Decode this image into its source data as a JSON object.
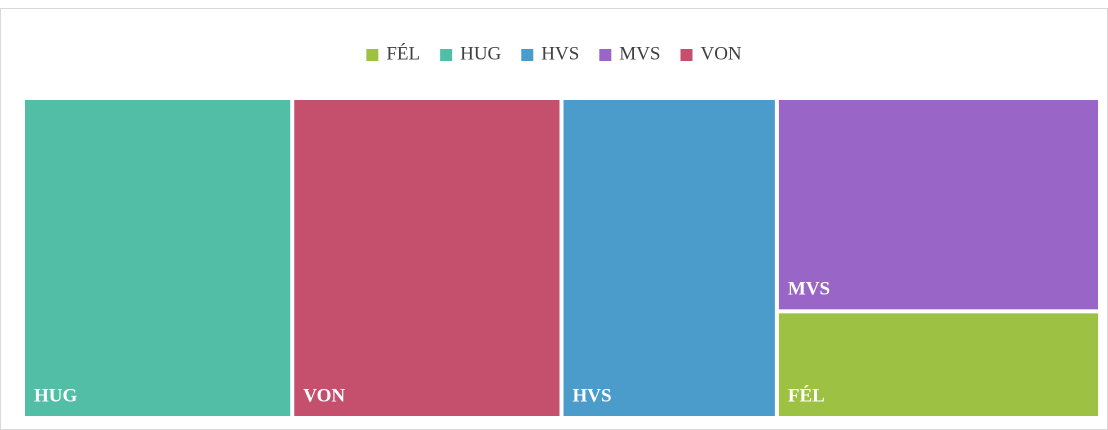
{
  "chart_data": {
    "type": "treemap",
    "series": [
      {
        "name": "FÉL",
        "color": "#9dc243",
        "value": 10
      },
      {
        "name": "HUG",
        "color": "#52bea5",
        "value": 25
      },
      {
        "name": "HVS",
        "color": "#4b9ccb",
        "value": 20
      },
      {
        "name": "MVS",
        "color": "#9966c8",
        "value": 20
      },
      {
        "name": "VON",
        "color": "#c4506e",
        "value": 25
      }
    ],
    "legend": "top"
  }
}
